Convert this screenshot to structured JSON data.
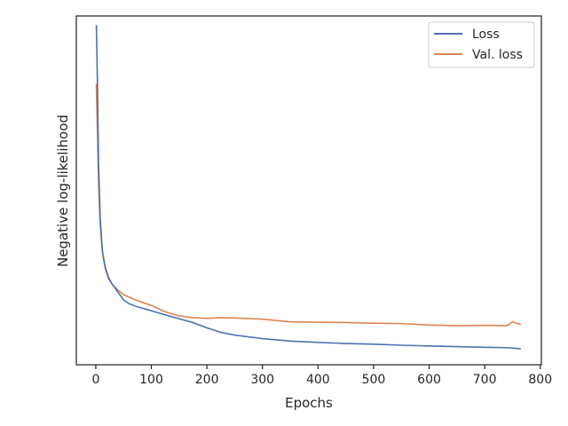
{
  "chart_data": {
    "type": "line",
    "title": "",
    "xlabel": "Epochs",
    "ylabel": "Negative log-likelihood",
    "xlim": [
      -35,
      802
    ],
    "ylim": [
      0,
      100
    ],
    "y_ticks_shown": false,
    "grid": false,
    "legend_position": "top-right",
    "x_ticks": [
      0,
      100,
      200,
      300,
      400,
      500,
      600,
      700,
      800
    ],
    "series": [
      {
        "name": "Loss",
        "color": "#4c72b0",
        "x": [
          1,
          3,
          5,
          8,
          12,
          17,
          23,
          30,
          40,
          50,
          60,
          75,
          100,
          125,
          150,
          175,
          200,
          225,
          250,
          300,
          350,
          400,
          450,
          500,
          550,
          600,
          650,
          700,
          740,
          765
        ],
        "y": [
          97.4,
          81.0,
          58.0,
          42.0,
          32.5,
          28.0,
          25.0,
          23.0,
          20.8,
          18.6,
          17.5,
          16.6,
          15.5,
          14.3,
          13.2,
          12.1,
          10.6,
          9.3,
          8.5,
          7.5,
          6.8,
          6.4,
          6.1,
          5.9,
          5.6,
          5.4,
          5.2,
          5.0,
          4.9,
          4.6
        ]
      },
      {
        "name": "Val. loss",
        "color": "#dd8452",
        "x": [
          1,
          3,
          5,
          8,
          12,
          17,
          23,
          30,
          40,
          50,
          60,
          75,
          100,
          125,
          150,
          175,
          200,
          225,
          250,
          300,
          350,
          400,
          450,
          500,
          550,
          600,
          650,
          700,
          740,
          750,
          765
        ],
        "y": [
          80.6,
          66.0,
          52.0,
          40.0,
          32.0,
          27.6,
          24.6,
          23.0,
          21.4,
          20.1,
          19.4,
          18.4,
          17.0,
          15.2,
          14.0,
          13.5,
          13.3,
          13.5,
          13.4,
          13.1,
          12.3,
          12.2,
          12.1,
          11.9,
          11.8,
          11.4,
          11.2,
          11.3,
          11.2,
          12.3,
          11.5
        ]
      }
    ]
  }
}
